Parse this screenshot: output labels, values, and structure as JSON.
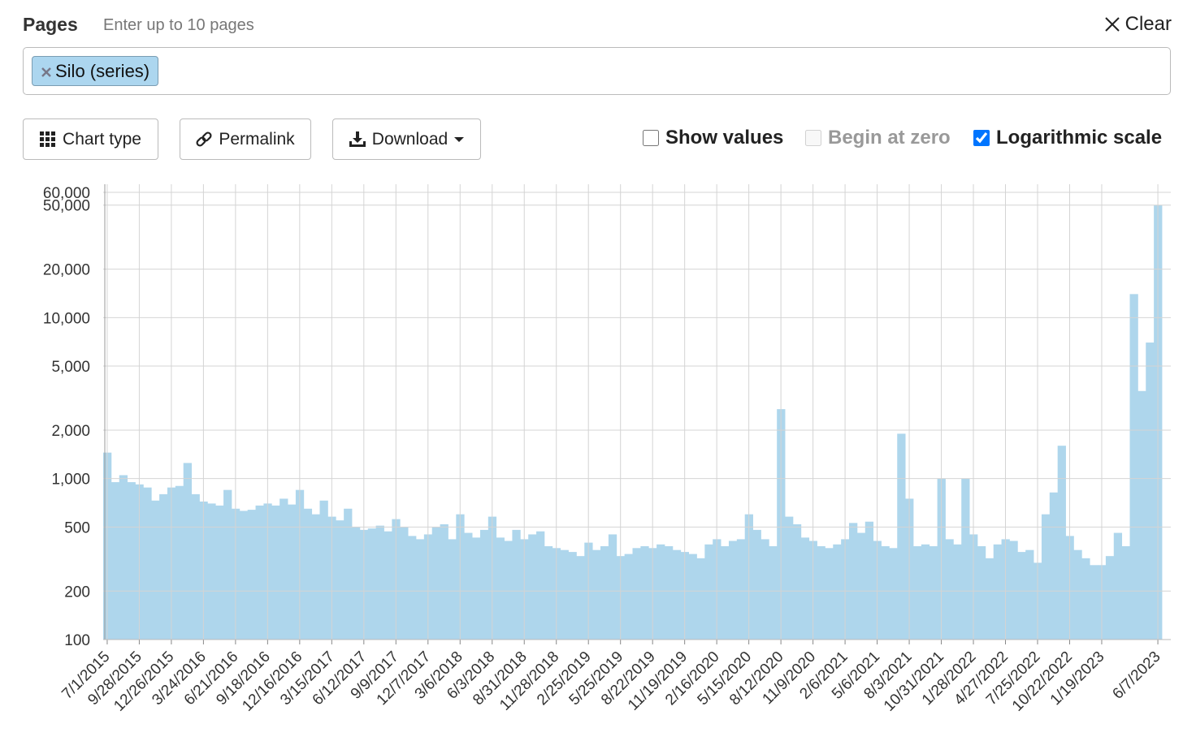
{
  "header": {
    "title": "Pages",
    "hint": "Enter up to 10 pages",
    "clear": "Clear"
  },
  "input": {
    "tags": [
      "Silo (series)"
    ]
  },
  "buttons": [
    "Chart type",
    "Permalink",
    "Download"
  ],
  "options": [
    {
      "label": "Show values",
      "checked": false,
      "disabled": false
    },
    {
      "label": "Begin at zero",
      "checked": false,
      "disabled": true
    },
    {
      "label": "Logarithmic scale",
      "checked": true,
      "disabled": false
    }
  ],
  "chart_data": {
    "type": "bar",
    "log_scale": true,
    "grid": true,
    "color": "#aed6ec",
    "ylim": [
      100,
      60000
    ],
    "yticks": [
      100,
      200,
      500,
      {
        "value": 1000,
        "label": "1,000"
      },
      {
        "value": 2000,
        "label": "2,000"
      },
      {
        "value": 5000,
        "label": "5,000"
      },
      {
        "value": 10000,
        "label": "10,000"
      },
      {
        "value": 20000,
        "label": "20,000"
      },
      {
        "value": 50000,
        "label": "50,000"
      },
      {
        "value": 60000,
        "label": "60,000"
      }
    ],
    "categories": [
      "7/1/2015",
      null,
      null,
      null,
      "9/28/2015",
      null,
      null,
      null,
      "12/26/2015",
      null,
      null,
      null,
      "3/24/2016",
      null,
      null,
      null,
      "6/21/2016",
      null,
      null,
      null,
      "9/18/2016",
      null,
      null,
      null,
      "12/16/2016",
      null,
      null,
      null,
      "3/15/2017",
      null,
      null,
      null,
      "6/12/2017",
      null,
      null,
      null,
      "9/9/2017",
      null,
      null,
      null,
      "12/7/2017",
      null,
      null,
      null,
      "3/6/2018",
      null,
      null,
      null,
      "6/3/2018",
      null,
      null,
      null,
      "8/31/2018",
      null,
      null,
      null,
      "11/28/2018",
      null,
      null,
      null,
      "2/25/2019",
      null,
      null,
      null,
      "5/25/2019",
      null,
      null,
      null,
      "8/22/2019",
      null,
      null,
      null,
      "11/19/2019",
      null,
      null,
      null,
      "2/16/2020",
      null,
      null,
      null,
      "5/15/2020",
      null,
      null,
      null,
      "8/12/2020",
      null,
      null,
      null,
      "11/9/2020",
      null,
      null,
      null,
      "2/6/2021",
      null,
      null,
      null,
      "5/6/2021",
      null,
      null,
      null,
      "8/3/2021",
      null,
      null,
      null,
      "10/31/2021",
      null,
      null,
      null,
      "1/28/2022",
      null,
      null,
      null,
      "4/27/2022",
      null,
      null,
      null,
      "7/25/2022",
      null,
      null,
      null,
      "10/22/2022",
      null,
      null,
      null,
      "1/19/2023",
      null,
      null,
      null,
      null,
      null,
      null,
      "6/7/2023"
    ],
    "values": [
      1450,
      950,
      1050,
      950,
      920,
      880,
      730,
      800,
      880,
      900,
      1250,
      800,
      720,
      700,
      680,
      850,
      650,
      630,
      640,
      680,
      700,
      680,
      750,
      690,
      850,
      650,
      600,
      730,
      580,
      550,
      650,
      500,
      480,
      490,
      510,
      470,
      560,
      500,
      440,
      420,
      450,
      500,
      520,
      420,
      600,
      460,
      430,
      480,
      580,
      430,
      410,
      480,
      420,
      450,
      470,
      380,
      370,
      360,
      350,
      330,
      400,
      360,
      380,
      450,
      330,
      340,
      370,
      380,
      370,
      390,
      380,
      360,
      350,
      340,
      320,
      390,
      420,
      380,
      410,
      420,
      600,
      480,
      420,
      380,
      2700,
      580,
      520,
      430,
      410,
      380,
      370,
      390,
      420,
      530,
      460,
      540,
      410,
      380,
      370,
      1900,
      750,
      380,
      390,
      380,
      1000,
      420,
      390,
      1000,
      450,
      380,
      320,
      390,
      420,
      410,
      350,
      360,
      300,
      600,
      820,
      1600,
      440,
      360,
      320,
      290,
      290,
      330,
      460,
      380,
      14000,
      3500,
      7000,
      50000
    ]
  }
}
